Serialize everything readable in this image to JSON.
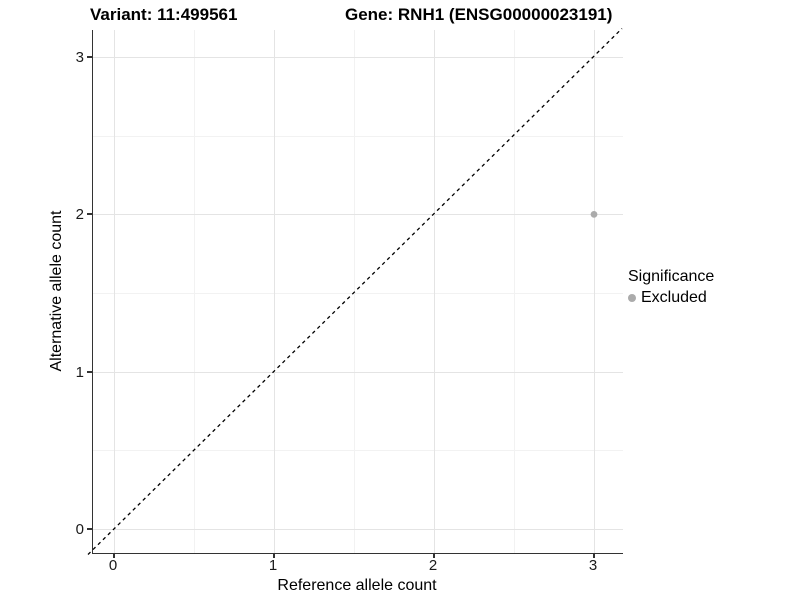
{
  "figure": {
    "title_left": "Variant: 11:499561",
    "title_right": "Gene: RNH1 (ENSG00000023191)"
  },
  "chart_data": {
    "type": "scatter",
    "title": "Variant: 11:499561   Gene: RNH1 (ENSG00000023191)",
    "xlabel": "Reference allele count",
    "ylabel": "Alternative allele count",
    "xlim": [
      -0.13,
      3.19
    ],
    "ylim": [
      -0.15,
      3.19
    ],
    "x_ticks": [
      "0",
      "1",
      "2",
      "3"
    ],
    "y_ticks": [
      "0",
      "1",
      "2",
      "3"
    ],
    "grid": "major and minor, light gray, on white background",
    "reference_line": {
      "kind": "identity y=x",
      "style": "dashed",
      "color": "#000000"
    },
    "series": [
      {
        "name": "Excluded",
        "color": "#ababab",
        "marker": "circle",
        "points": [
          {
            "x": 3,
            "y": 2
          }
        ]
      }
    ],
    "legend": {
      "title": "Significance",
      "position": "right",
      "entries": [
        {
          "label": "Excluded",
          "color": "#ababab"
        }
      ]
    }
  }
}
